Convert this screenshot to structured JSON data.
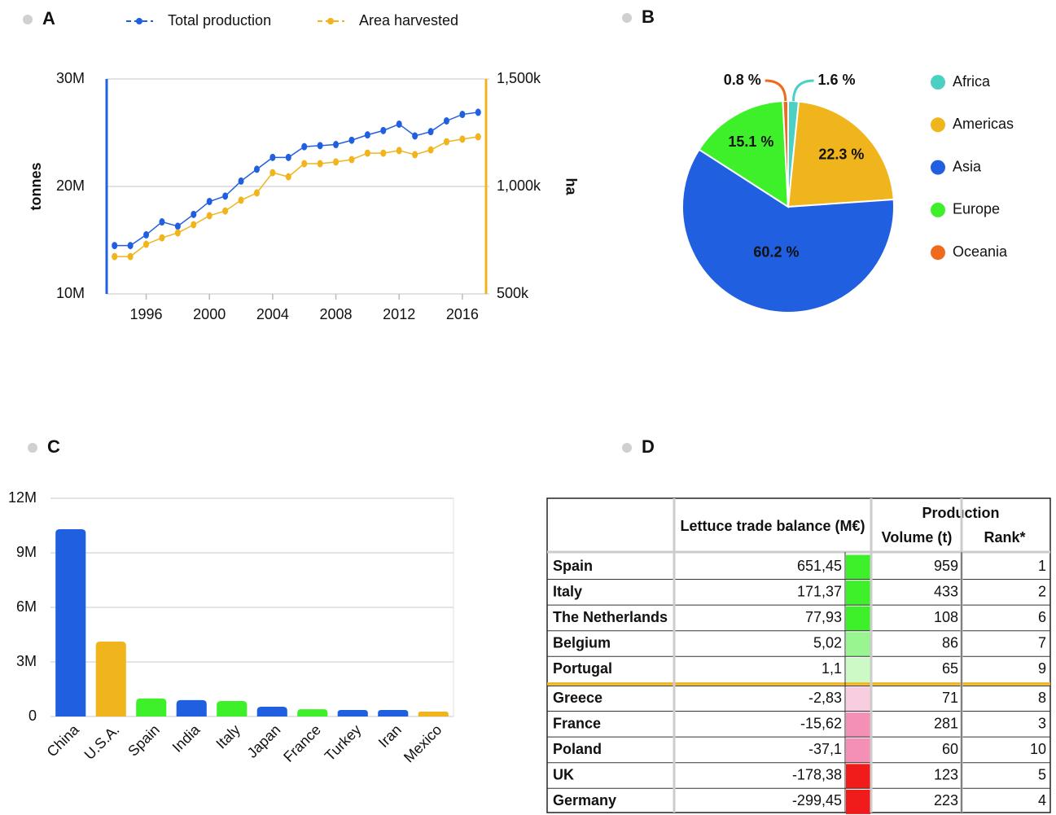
{
  "chart_data": [
    {
      "type": "line",
      "label": "A",
      "x": [
        1994,
        1995,
        1996,
        1997,
        1998,
        1999,
        2000,
        2001,
        2002,
        2003,
        2004,
        2005,
        2006,
        2007,
        2008,
        2009,
        2010,
        2011,
        2012,
        2013,
        2014,
        2015,
        2016,
        2017
      ],
      "xlim": [
        1993.5,
        2017.5
      ],
      "xticks": [
        1996,
        2000,
        2004,
        2008,
        2012,
        2016
      ],
      "ylabel": "tonnes",
      "y2label": "ha",
      "ylim": [
        10000000,
        30000000
      ],
      "yticks": [
        {
          "value": 10000000,
          "label": "10M"
        },
        {
          "value": 20000000,
          "label": "20M"
        },
        {
          "value": 30000000,
          "label": "30M"
        }
      ],
      "y2lim": [
        500000,
        1500000
      ],
      "y2ticks": [
        {
          "value": 500000,
          "label": "500k"
        },
        {
          "value": 1000000,
          "label": "1,000k"
        },
        {
          "value": 1500000,
          "label": "1,500k"
        }
      ],
      "grid": true,
      "series": [
        {
          "name": "Total production",
          "color": "#2060e0",
          "values": [
            14500000,
            14500000,
            15500000,
            16700000,
            16300000,
            17400000,
            18600000,
            19100000,
            20500000,
            21600000,
            22700000,
            22700000,
            23700000,
            23800000,
            23900000,
            24300000,
            24800000,
            25200000,
            25800000,
            24700000,
            25100000,
            26100000,
            26700000,
            26900000
          ]
        },
        {
          "name": "Area harvested",
          "color": "#f0b41c",
          "axis": "y2",
          "values": [
            674000,
            674000,
            731000,
            761000,
            784000,
            822000,
            864000,
            886000,
            936000,
            970000,
            1064000,
            1045000,
            1106000,
            1106000,
            1114000,
            1125000,
            1155000,
            1155000,
            1167000,
            1148000,
            1170000,
            1208000,
            1220000,
            1231000
          ]
        }
      ]
    },
    {
      "type": "pie",
      "label": "B",
      "categories": [
        "Africa",
        "Americas",
        "Asia",
        "Europe",
        "Oceania"
      ],
      "values": [
        1.6,
        22.3,
        60.2,
        15.1,
        0.8
      ],
      "value_labels": [
        "1.6 %",
        "22.3 %",
        "60.2 %",
        "15.1 %",
        "0.8 %"
      ],
      "colors": [
        "#4dd0c4",
        "#f0b41c",
        "#1f5fe0",
        "#3ef02a",
        "#f06a1e"
      ]
    },
    {
      "type": "bar",
      "label": "C",
      "categories": [
        "China",
        "U.S.A.",
        "Spain",
        "India",
        "Italy",
        "Japan",
        "France",
        "Turkey",
        "Iran",
        "Mexico"
      ],
      "values": [
        10300000,
        4120000,
        990000,
        900000,
        850000,
        540000,
        400000,
        360000,
        360000,
        270000
      ],
      "colors": [
        "#1f5fe0",
        "#f0b41c",
        "#3ef02a",
        "#1f5fe0",
        "#3ef02a",
        "#1f5fe0",
        "#3ef02a",
        "#1f5fe0",
        "#1f5fe0",
        "#f0b41c"
      ],
      "ylim": [
        0,
        12000000
      ],
      "yticks": [
        0,
        {
          "value": 3000000,
          "label": "3M"
        },
        {
          "value": 6000000,
          "label": "6M"
        },
        {
          "value": 9000000,
          "label": "9M"
        },
        {
          "value": 12000000,
          "label": "12M"
        }
      ],
      "grid": true
    }
  ],
  "table": {
    "label": "D",
    "header": {
      "balance": "Lettuce trade balance (M€)",
      "production": "Production",
      "volume": "Volume (t)",
      "rank": "Rank*"
    },
    "rows": [
      {
        "country": "Spain",
        "balance": "651,45",
        "color": "#3ef02a",
        "volume": "959",
        "rank": "1"
      },
      {
        "country": "Italy",
        "balance": "171,37",
        "color": "#3ef02a",
        "volume": "433",
        "rank": "2"
      },
      {
        "country": "The Netherlands",
        "balance": "77,93",
        "color": "#3ef02a",
        "volume": "108",
        "rank": "6"
      },
      {
        "country": "Belgium",
        "balance": "5,02",
        "color": "#99f58f",
        "volume": "86",
        "rank": "7"
      },
      {
        "country": "Portugal",
        "balance": "1,1",
        "color": "#ccf9c6",
        "volume": "65",
        "rank": "9"
      },
      {
        "country": "Greece",
        "balance": "-2,83",
        "color": "#f9cde0",
        "volume": "71",
        "rank": "8"
      },
      {
        "country": "France",
        "balance": "-15,62",
        "color": "#f48fb5",
        "volume": "281",
        "rank": "3"
      },
      {
        "country": "Poland",
        "balance": "-37,1",
        "color": "#f48fb5",
        "volume": "60",
        "rank": "10"
      },
      {
        "country": "UK",
        "balance": "-178,38",
        "color": "#f01c1c",
        "volume": "123",
        "rank": "5"
      },
      {
        "country": "Germany",
        "balance": "-299,45",
        "color": "#f01c1c",
        "volume": "223",
        "rank": "4"
      }
    ]
  }
}
